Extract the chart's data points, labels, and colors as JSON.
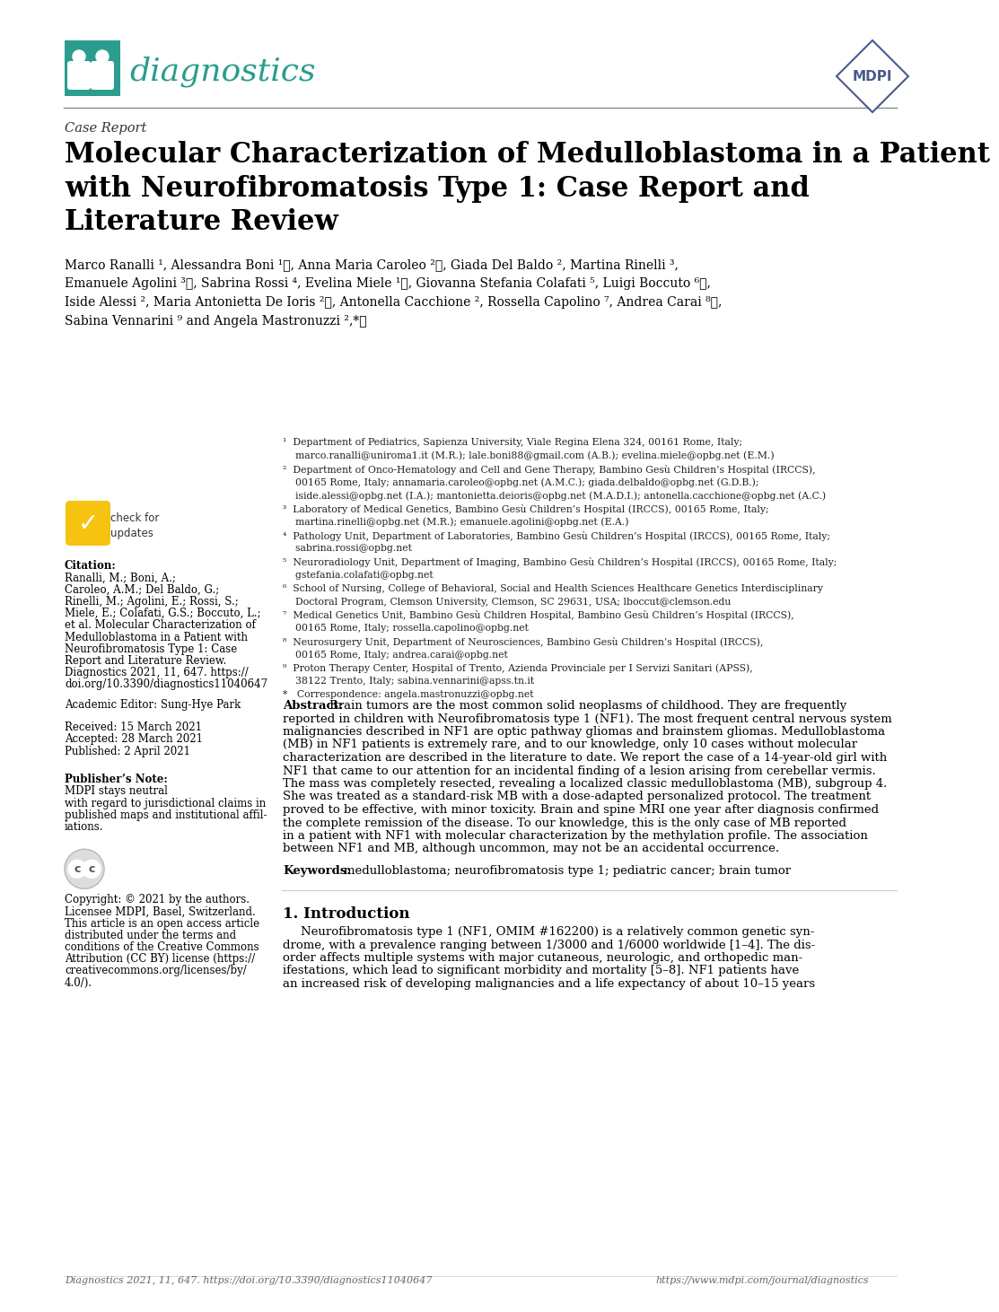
{
  "bg_color": "#ffffff",
  "header_line_color": "#888888",
  "teal_color": "#2a9d8f",
  "mdpi_color": "#4a5a8a",
  "journal_name": "diagnostics",
  "section_label": "Case Report",
  "title": "Molecular Characterization of Medulloblastoma in a Patient\nwith Neurofibromatosis Type 1: Case Report and\nLiterature Review",
  "author_lines": [
    "Marco Ranalli ¹, Alessandra Boni ¹ⓘ, Anna Maria Caroleo ²ⓘ, Giada Del Baldo ², Martina Rinelli ³,",
    "Emanuele Agolini ³ⓘ, Sabrina Rossi ⁴, Evelina Miele ¹ⓘ, Giovanna Stefania Colafati ⁵, Luigi Boccuto ⁶ⓘ,",
    "Iside Alessi ², Maria Antonietta De Ioris ²ⓘ, Antonella Cacchione ², Rossella Capolino ⁷, Andrea Carai ⁸ⓘ,",
    "Sabina Vennarini ⁹ and Angela Mastronuzzi ²,*ⓘ"
  ],
  "aff_texts": [
    "¹  Department of Pediatrics, Sapienza University, Viale Regina Elena 324, 00161 Rome, Italy;",
    "    marco.ranalli@uniroma1.it (M.R.); lale.boni88@gmail.com (A.B.); evelina.miele@opbg.net (E.M.)",
    "²  Department of Onco-Hematology and Cell and Gene Therapy, Bambino Gesù Children’s Hospital (IRCCS),",
    "    00165 Rome, Italy; annamaria.caroleo@opbg.net (A.M.C.); giada.delbaldo@opbg.net (G.D.B.);",
    "    iside.alessi@opbg.net (I.A.); mantonietta.deioris@opbg.net (M.A.D.I.); antonella.cacchione@opbg.net (A.C.)",
    "³  Laboratory of Medical Genetics, Bambino Gesù Children’s Hospital (IRCCS), 00165 Rome, Italy;",
    "    martina.rinelli@opbg.net (M.R.); emanuele.agolini@opbg.net (E.A.)",
    "⁴  Pathology Unit, Department of Laboratories, Bambino Gesù Children’s Hospital (IRCCS), 00165 Rome, Italy;",
    "    sabrina.rossi@opbg.net",
    "⁵  Neuroradiology Unit, Department of Imaging, Bambino Gesù Children’s Hospital (IRCCS), 00165 Rome, Italy;",
    "    gstefania.colafati@opbg.net",
    "⁶  School of Nursing, College of Behavioral, Social and Health Sciences Healthcare Genetics Interdisciplinary",
    "    Doctoral Program, Clemson University, Clemson, SC 29631, USA; lboccut@clemson.edu",
    "⁷  Medical Genetics Unit, Bambino Gesù Children Hospital, Bambino Gesù Children’s Hospital (IRCCS),",
    "    00165 Rome, Italy; rossella.capolino@opbg.net",
    "⁸  Neurosurgery Unit, Department of Neurosciences, Bambino Gesù Children’s Hospital (IRCCS),",
    "    00165 Rome, Italy; andrea.carai@opbg.net",
    "⁹  Proton Therapy Center, Hospital of Trento, Azienda Provinciale per I Servizi Sanitari (APSS),",
    "    38122 Trento, Italy; sabina.vennarini@apss.tn.it",
    "*   Correspondence: angela.mastronuzzi@opbg.net"
  ],
  "citation_label": "Citation:",
  "citation_lines": [
    "Ranalli, M.; Boni, A.;",
    "Caroleo, A.M.; Del Baldo, G.;",
    "Rinelli, M.; Agolini, E.; Rossi, S.;",
    "Miele, E.; Colafati, G.S.; Boccuto, L.;",
    "et al. Molecular Characterization of",
    "Medulloblastoma in a Patient with",
    "Neurofibromatosis Type 1: Case",
    "Report and Literature Review.",
    "Diagnostics 2021, 11, 647. https://",
    "doi.org/10.3390/diagnostics11040647"
  ],
  "academic_editor_label": "Academic Editor: Sung-Hye Park",
  "received": "Received: 15 March 2021",
  "accepted": "Accepted: 28 March 2021",
  "published": "Published: 2 April 2021",
  "publisher_note_title": "Publisher’s Note:",
  "publisher_note_lines": [
    "MDPI stays neutral",
    "with regard to jurisdictional claims in",
    "published maps and institutional affil-",
    "iations."
  ],
  "copyright_lines": [
    "Copyright: © 2021 by the authors.",
    "Licensee MDPI, Basel, Switzerland.",
    "This article is an open access article",
    "distributed under the terms and",
    "conditions of the Creative Commons",
    "Attribution (CC BY) license (https://",
    "creativecommons.org/licenses/by/",
    "4.0/)."
  ],
  "abstract_title": "Abstract:",
  "abstract_lines": [
    "Brain tumors are the most common solid neoplasms of childhood. They are frequently",
    "reported in children with Neurofibromatosis type 1 (NF1). The most frequent central nervous system",
    "malignancies described in NF1 are optic pathway gliomas and brainstem gliomas. Medulloblastoma",
    "(MB) in NF1 patients is extremely rare, and to our knowledge, only 10 cases without molecular",
    "characterization are described in the literature to date. We report the case of a 14-year-old girl with",
    "NF1 that came to our attention for an incidental finding of a lesion arising from cerebellar vermis.",
    "The mass was completely resected, revealing a localized classic medulloblastoma (MB), subgroup 4.",
    "She was treated as a standard-risk MB with a dose-adapted personalized protocol. The treatment",
    "proved to be effective, with minor toxicity. Brain and spine MRI one year after diagnosis confirmed",
    "the complete remission of the disease. To our knowledge, this is the only case of MB reported",
    "in a patient with NF1 with molecular characterization by the methylation profile. The association",
    "between NF1 and MB, although uncommon, may not be an accidental occurrence."
  ],
  "keywords_label": "Keywords:",
  "keywords_text": "medulloblastoma; neurofibromatosis type 1; pediatric cancer; brain tumor",
  "intro_title": "1. Introduction",
  "intro_lines": [
    "Neurofibromatosis type 1 (NF1, OMIM #162200) is a relatively common genetic syn-",
    "drome, with a prevalence ranging between 1/3000 and 1/6000 worldwide [1–4]. The dis-",
    "order affects multiple systems with major cutaneous, neurologic, and orthopedic man-",
    "ifestations, which lead to significant morbidity and mortality [5–8]. NF1 patients have",
    "an increased risk of developing malignancies and a life expectancy of about 10–15 years"
  ],
  "footer_text": "Diagnostics 2021, 11, 647. https://doi.org/10.3390/diagnostics11040647",
  "footer_right": "https://www.mdpi.com/journal/diagnostics"
}
